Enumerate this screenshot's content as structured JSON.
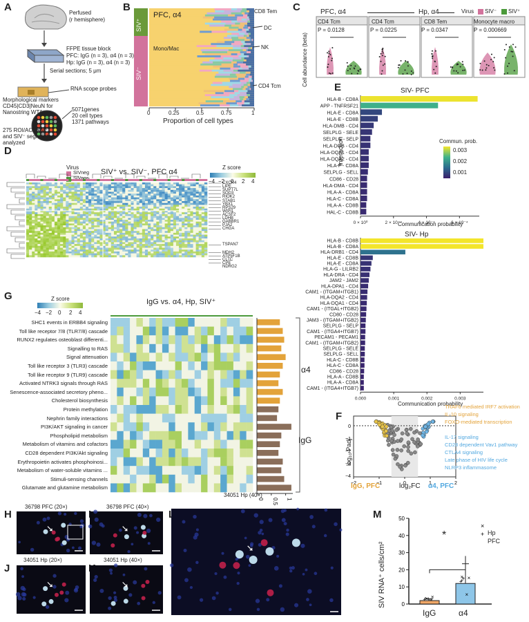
{
  "panel_letters": [
    "A",
    "B",
    "C",
    "D",
    "E",
    "F",
    "G",
    "H",
    "I",
    "J",
    "K",
    "L",
    "M"
  ],
  "panelA": {
    "perfused": "Perfused",
    "hemisphere": "(r hemisphere)",
    "ffpe": "FFPE tissue block",
    "pfc": "PFC: IgG (n = 3), α4 (n = 3)",
    "hp": "Hp: IgG (n = 3), α4 (n = 3)",
    "serial": "Serial sections; 5 μm",
    "rnascope": "RNA scope probes",
    "markers1": "Morphological markers",
    "markers2": "CD45|CD3|NeuN for",
    "markers3": "Nanostring WTA",
    "roi1": "275 ROI/AOI SIV⁺",
    "roi2": "and SIV⁻ segments",
    "roi3": "analyzed",
    "genes": "5071genes",
    "celltypes": "20 cell types",
    "pathways": "1371 pathways"
  },
  "panelB": {
    "title": "PFC, α4",
    "siv_pos": "SIV⁺",
    "siv_neg": "SIV⁻",
    "mono": "Mono/Mac",
    "labels": [
      "CD8 Tem",
      "DC",
      "NK",
      "CD4 Tcm"
    ],
    "xlabel": "Proportion of cell types",
    "ticks": [
      "0",
      "0.25",
      "0.5",
      "0.75",
      "1"
    ]
  },
  "panelC": {
    "title_pfc": "PFC, α4",
    "title_hp": "Hp, α4",
    "legend_title": "Virus",
    "legend": [
      "SIV⁻",
      "SIV⁺"
    ],
    "ylabel": "Cell abundance (beta)",
    "facets": [
      {
        "name": "CD4 Tcm",
        "p": "P = 0.0128"
      },
      {
        "name": "CD4 Tcm",
        "p": "P = 0.0225"
      },
      {
        "name": "CD8 Tem",
        "p": "P = 0.0347"
      },
      {
        "name": "Monocyte macro",
        "p": "P = 0.000669"
      }
    ]
  },
  "panelD": {
    "title": "SIV⁺ vs. SIV⁻, PFC α4",
    "virus": "Virus",
    "siv_neg": "SIVneg",
    "siv_pos": "SIVpos",
    "zscore": "Z score",
    "zticks": [
      "−4",
      "−2",
      "0",
      "2",
      "4"
    ],
    "genes": [
      "CXCR4",
      "LIPE",
      "SUPT7L",
      "SOD3",
      "RIOK2",
      "STAB1",
      "YBX1",
      "RPS29",
      "WIPI1",
      "ACSF2",
      "LDHB",
      "GABBR1",
      "PJA2",
      "CHGA",
      "TSPAN7",
      "MDH2",
      "ATP5F1B",
      "CLTC",
      "CPE",
      "NDRG2"
    ]
  },
  "panelE": {
    "ylabel": "Interaction",
    "xlabel": "Communication probability",
    "legend_title": "Commun. prob.",
    "legend_ticks": [
      "0.003",
      "0.002",
      "0.001"
    ],
    "pfc_title": "SIV- PFC",
    "hp_title": "SIV- Hp",
    "pfc_xticks": [
      "0 × 10⁰",
      "2 × 10⁻⁴",
      "4 × 10⁻⁴",
      "6 × 10⁻⁴"
    ],
    "hp_xticks": [
      "0.000",
      "0.001",
      "0.002",
      "0.003"
    ]
  },
  "panelF": {
    "legend_orange": [
      "TRAF6 mediated IRF7 activation",
      "IL-10 signaling",
      "FOXO-mediated transcription"
    ],
    "legend_blue": [
      "IL-17 signaling",
      "CD28 dependent Vav1 pathway",
      "CTLA4 signaling",
      "Late phase of HIV life cycle",
      "NLRP3 inflammasome"
    ],
    "xlabel_left": "IgG, PFC",
    "xlabel_mid": "log₂FC",
    "xlabel_right": "α4, PFC",
    "ylabel": "log₁₀ Padj",
    "xticks": [
      "−2",
      "−1",
      "0",
      "1",
      "2"
    ],
    "yticks": [
      "0",
      "−1",
      "−2",
      "−3",
      "−4"
    ]
  },
  "panelG": {
    "title": "IgG vs. α4, Hp, SIV⁺",
    "zscore": "Z score",
    "zticks": [
      "−4",
      "−2",
      "0",
      "2",
      "4"
    ],
    "group_a4": "α4",
    "group_igg": "IgG",
    "xticks": [
      "0",
      "0.5",
      "1"
    ],
    "pathways": [
      "SHC1 events in ERBB4 signaling",
      "Toll like receptor 7/8 (TLR7/8) cascade",
      "RUNX2 regulates osteoblast differenti...",
      "Signalling to RAS",
      "Signal attenuation",
      "Toll like receptor 3 (TLR3) cascade",
      "Toll like receptor 9 (TLR9) cascade",
      "Activated NTRK3 signals through RAS",
      "Senescence-associated secretory pheno...",
      "Cholesterol biosynthesis",
      "Protein methylation",
      "Nephrin family interactions",
      "PI3K/AKT signaling in cancer",
      "Phospholipid metabolism",
      "Metabolism of vitamins and cofactors",
      "CD28 dependent PI3K/Akt signaling",
      "Erythropoietin activates phosphoinosi...",
      "Metabolism of water-soluble vitamins ...",
      "Stimuli-sensing channels",
      "Glutamate and glutamine metabolism"
    ]
  },
  "panelsMicro": {
    "h": "36798 PFC (20×)",
    "i": "36798 PFC (40×)",
    "j": "34051 Hp (20×)",
    "k": "34051 Hp (40×)",
    "l": "34051 Hp (40×)"
  },
  "panelM": {
    "ylabel": "SIV RNA⁺ cells/cm²",
    "legend": [
      "Hp",
      "PFC"
    ],
    "star": "*",
    "yticks": [
      "0",
      "10",
      "20",
      "30",
      "40",
      "50"
    ]
  },
  "chart_data": [
    {
      "type": "bar",
      "id": "E-PFC",
      "title": "SIV- PFC",
      "xlabel": "Communication probability",
      "ylabel": "Interaction",
      "categories": [
        "HLA-B - CD8A",
        "APP - TNFRSF21",
        "HLA-E - CD8A",
        "HLA-E - CD8B",
        "HLA-DMB - CD4",
        "SELPLG - SELE",
        "SELPLG - SELP",
        "HLA-DOB - CD4",
        "HLA-DQA1 - CD4",
        "HLA-DQA2 - CD4",
        "HLA-F - CD8A",
        "SELPLG - SELL",
        "CD86 - CD28",
        "HLA-DMA - CD4",
        "HLA-A - CD8A",
        "HLA-C - CD8A",
        "HLA-A - CD8B",
        "HAL-C - CD8B"
      ],
      "values": [
        0.00071,
        0.00047,
        0.00013,
        0.000105,
        8e-05,
        7e-05,
        6e-05,
        6e-05,
        5e-05,
        5e-05,
        5e-05,
        4.5e-05,
        4e-05,
        4e-05,
        4e-05,
        4e-05,
        3.5e-05,
        3.5e-05
      ],
      "xlim": [
        0,
        0.00072
      ]
    },
    {
      "type": "bar",
      "id": "E-Hp",
      "title": "SIV- Hp",
      "xlabel": "Communication probability",
      "ylabel": "Interaction",
      "categories": [
        "HLA-B - CD8B",
        "HLA-B - CD8A",
        "HLA-DRB1 - CD4",
        "HLA-E - CD8B",
        "HLA-E - CD8A",
        "HLA-G - LILRB2",
        "HLA-DRA - CD4",
        "JAM2 - JAM2",
        "HLA-DPA1 - CD4",
        "CAM1 - (ITGAM+ITGB1)",
        "HLA-DQA2 - CD4",
        "HLA-DQA1 - CD4",
        "CAM1 - (ITGAL+ITGB2)",
        "CD80 - CD28",
        "JAM3 - (ITGAM+ITGB2)",
        "SELPLG - SELP",
        "CAM1 - (ITGA4+ITGB7)",
        "PECAM1 - PECAM1",
        "CAM1 - (ITGAM+ITGB2)",
        "SELPLG - SELE",
        "SELPLG - SELL",
        "HLA-C - CD8B",
        "HLA-C - CD8A",
        "CD86 - CD28",
        "HLA-A - CD8B",
        "HLA-A - CD8A",
        "CAM1 - (ITGA4+ITGB7)"
      ],
      "values": [
        0.0037,
        0.0037,
        0.00135,
        0.00037,
        0.00033,
        0.0003,
        0.00027,
        0.00025,
        0.00023,
        0.00021,
        0.0002,
        0.00019,
        0.00018,
        0.00017,
        0.00016,
        0.00015,
        0.00015,
        0.00014,
        0.00014,
        0.00013,
        0.00013,
        0.00012,
        0.00012,
        0.00011,
        0.0001,
        0.0001,
        0.0001
      ],
      "xlim": [
        0,
        0.0037
      ]
    },
    {
      "type": "bar",
      "id": "G-bars",
      "categories": [
        "SHC1 events in ERBB4 signaling",
        "Toll like receptor 7/8 (TLR7/8) cascade",
        "RUNX2 regulates osteoblast differenti...",
        "Signalling to RAS",
        "Signal attenuation",
        "Toll like receptor 3 (TLR3) cascade",
        "Toll like receptor 9 (TLR9) cascade",
        "Activated NTRK3 signals through RAS",
        "Senescence-associated secretory pheno...",
        "Cholesterol biosynthesis",
        "Protein methylation",
        "Nephrin family interactions",
        "PI3K/AKT signaling in cancer",
        "Phospholipid metabolism",
        "Metabolism of vitamins and cofactors",
        "CD28 dependent PI3K/Akt signaling",
        "Erythropoietin activates phosphoinosi...",
        "Metabolism of water-soluble vitamins ...",
        "Stimuli-sensing channels",
        "Glutamate and glutamine metabolism"
      ],
      "values": [
        0.8,
        0.9,
        0.95,
        0.85,
        1.0,
        0.9,
        0.8,
        0.75,
        0.9,
        0.8,
        0.75,
        0.7,
        1.2,
        0.85,
        0.8,
        0.75,
        0.9,
        0.85,
        0.95,
        1.2
      ],
      "groups": [
        "α4",
        "α4",
        "α4",
        "α4",
        "α4",
        "α4",
        "α4",
        "α4",
        "α4",
        "α4",
        "IgG",
        "IgG",
        "IgG",
        "IgG",
        "IgG",
        "IgG",
        "IgG",
        "IgG",
        "IgG",
        "IgG"
      ],
      "xlim": [
        0,
        1.25
      ]
    },
    {
      "type": "bar",
      "id": "M",
      "categories": [
        "IgG",
        "α4"
      ],
      "values": [
        2,
        12
      ],
      "errors": [
        1,
        11.5
      ],
      "ylim": [
        0,
        50
      ],
      "ylabel": "SIV RNA⁺ cells/cm²"
    }
  ]
}
